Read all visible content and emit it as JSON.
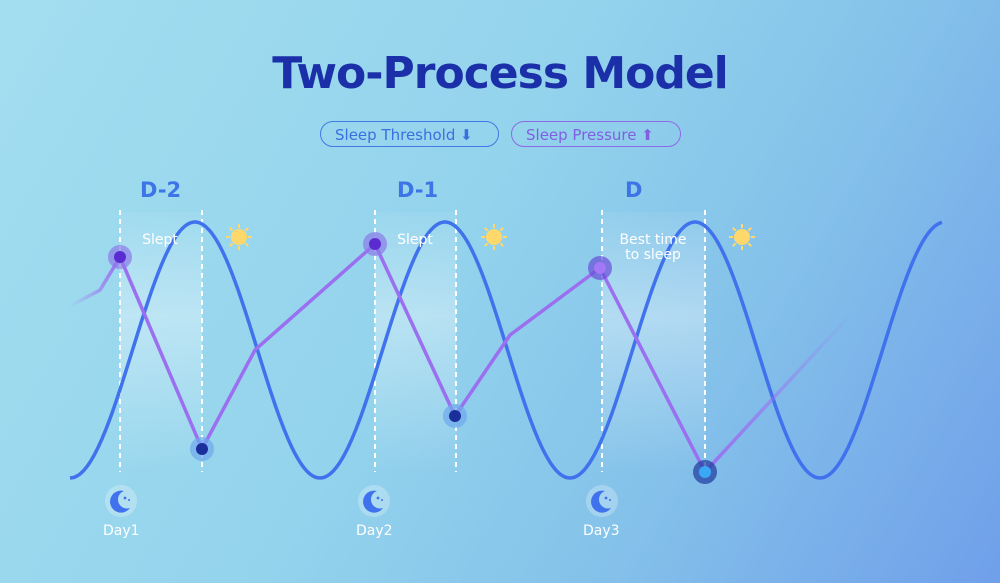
{
  "title": "Two-Process Model",
  "legend": {
    "threshold": {
      "label": "Sleep Threshold",
      "arrow": "⬇",
      "color": "#3a6fe0"
    },
    "pressure": {
      "label": "Sleep Pressure",
      "arrow": "⬆",
      "color": "#8060e0"
    }
  },
  "periods": [
    "D-2",
    "D-1",
    "D"
  ],
  "annotations": [
    "Slept",
    "Slept",
    "Best time to sleep"
  ],
  "days": [
    "Day1",
    "Day2",
    "Day3"
  ],
  "icons": {
    "sun": "sun-icon",
    "moon": "moon-stars-icon"
  },
  "colors": {
    "threshold_line": "#3f72ec",
    "pressure_line": "#9a6ff0",
    "sun": "#ffd86b",
    "title": "#1b2fa8"
  }
}
